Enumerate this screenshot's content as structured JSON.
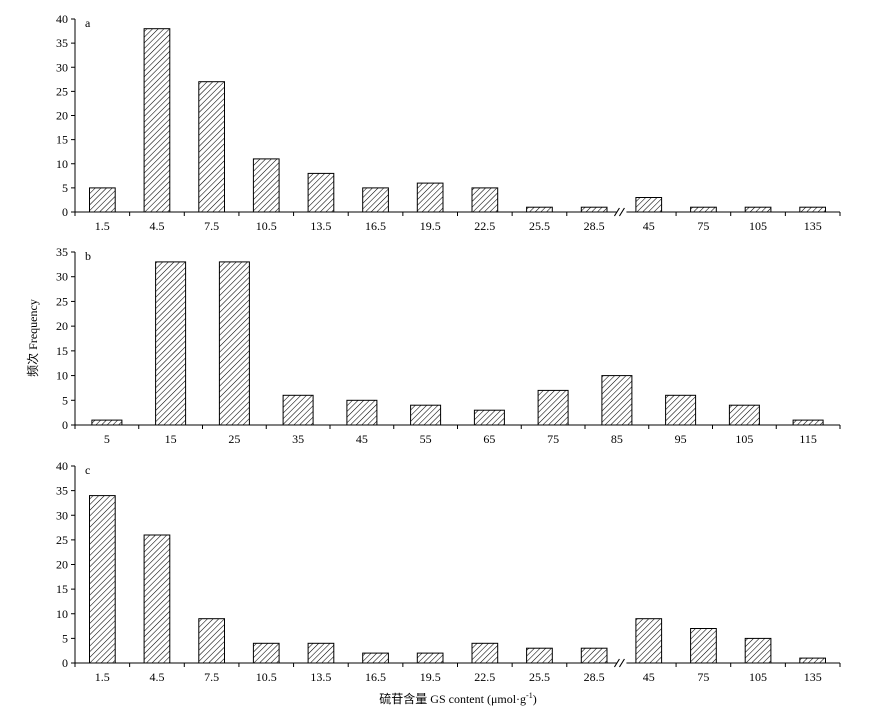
{
  "ylabel": "频次 Frequency",
  "xlabel": "硫苷含量 GS content (μmol·g",
  "xlabel_sup": "-1",
  "xlabel_suffix": ")",
  "colors": {
    "bar_fill": "#ffffff",
    "hatch": "#000000",
    "axis": "#000000"
  },
  "chart_data": [
    {
      "type": "bar",
      "panel": "a",
      "categories": [
        "1.5",
        "4.5",
        "7.5",
        "10.5",
        "13.5",
        "16.5",
        "19.5",
        "22.5",
        "25.5",
        "28.5",
        "45",
        "75",
        "105",
        "135"
      ],
      "values": [
        5,
        38,
        27,
        11,
        8,
        5,
        6,
        5,
        1,
        1,
        3,
        1,
        1,
        1
      ],
      "ylim": [
        0,
        40
      ],
      "yticks": [
        0,
        5,
        10,
        15,
        20,
        25,
        30,
        35,
        40
      ],
      "axis_break_after_index": 9,
      "xlabel": "",
      "ylabel": ""
    },
    {
      "type": "bar",
      "panel": "b",
      "categories": [
        "5",
        "15",
        "25",
        "35",
        "45",
        "55",
        "65",
        "75",
        "85",
        "95",
        "105",
        "115"
      ],
      "values": [
        1,
        33,
        33,
        6,
        5,
        4,
        3,
        7,
        10,
        6,
        4,
        1
      ],
      "ylim": [
        0,
        35
      ],
      "yticks": [
        0,
        5,
        10,
        15,
        20,
        25,
        30,
        35
      ],
      "xlabel": "",
      "ylabel": "频次 Frequency"
    },
    {
      "type": "bar",
      "panel": "c",
      "categories": [
        "1.5",
        "4.5",
        "7.5",
        "10.5",
        "13.5",
        "16.5",
        "19.5",
        "22.5",
        "25.5",
        "28.5",
        "45",
        "75",
        "105",
        "135"
      ],
      "values": [
        34,
        26,
        9,
        4,
        4,
        2,
        2,
        4,
        3,
        3,
        9,
        7,
        5,
        1
      ],
      "ylim": [
        0,
        40
      ],
      "yticks": [
        0,
        5,
        10,
        15,
        20,
        25,
        30,
        35,
        40
      ],
      "axis_break_after_index": 9,
      "xlabel": "硫苷含量 GS content (μmol·g-1)",
      "ylabel": ""
    }
  ]
}
